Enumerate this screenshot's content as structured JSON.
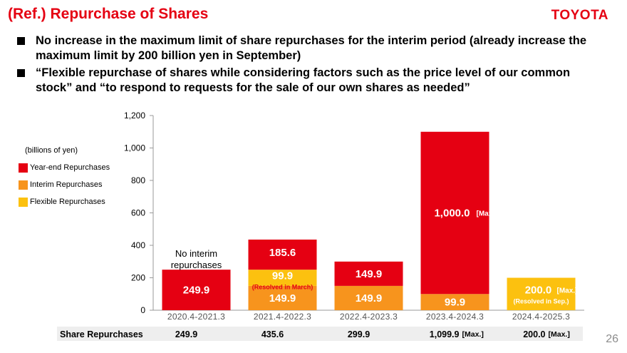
{
  "header": {
    "title": "(Ref.) Repurchase of Shares",
    "brand": "TOYOTA"
  },
  "bullets": [
    "No increase in the maximum limit of share repurchases for the interim period (already increase the maximum limit by 200 billion yen in September)",
    "“Flexible repurchase of shares while considering factors such as the price level of our common stock” and “to respond to requests for the sale of our own shares as needed”"
  ],
  "legend": {
    "unit": "(billions of yen)",
    "items": [
      {
        "label": "Year-end Repurchases",
        "color": "#e50012"
      },
      {
        "label": "Interim Repurchases",
        "color": "#f7941d"
      },
      {
        "label": "Flexible Repurchases",
        "color": "#fcc10f"
      }
    ]
  },
  "chart_data": {
    "type": "bar",
    "stacked": true,
    "ylim": [
      0,
      1200
    ],
    "yticks": [
      "0",
      "200",
      "400",
      "600",
      "800",
      "1,000",
      "1,200"
    ],
    "ytick_values": [
      0,
      200,
      400,
      600,
      800,
      1000,
      1200
    ],
    "categories": [
      "2020.4-2021.3",
      "2021.4-2022.3",
      "2022.4-2023.3",
      "2023.4-2024.3",
      "2024.4-2025.3"
    ],
    "series": [
      {
        "name": "Interim Repurchases",
        "color": "#f7941d",
        "values": [
          0,
          149.9,
          149.9,
          99.9,
          0
        ]
      },
      {
        "name": "Flexible Repurchases",
        "color": "#fcc10f",
        "values": [
          0,
          99.9,
          0,
          0,
          200.0
        ]
      },
      {
        "name": "Year-end Repurchases",
        "color": "#e50012",
        "values": [
          249.9,
          185.6,
          149.9,
          1000.0,
          0
        ]
      }
    ],
    "labels": {
      "Interim Repurchases": [
        "",
        "149.9",
        "149.9",
        "99.9",
        ""
      ],
      "Flexible Repurchases": [
        "",
        "99.9",
        "",
        "",
        "200.0"
      ],
      "Year-end Repurchases": [
        "249.9",
        "185.6",
        "149.9",
        "1,000.0",
        ""
      ]
    },
    "label_suffix": {
      "Year-end Repurchases": [
        "",
        "",
        "",
        "[Max.]",
        ""
      ],
      "Flexible Repurchases": [
        "",
        "",
        "",
        "",
        "[Max.]"
      ]
    },
    "label_notes": {
      "Flexible Repurchases": [
        "",
        "(Resolved in March)",
        "",
        "",
        "(Resolved in Sep.)"
      ]
    },
    "annotation": "No interim repurchases",
    "totals_label": "Share Repurchases",
    "totals": [
      "249.9",
      "435.6",
      "299.9",
      "1,099.9",
      "200.0"
    ],
    "totals_suffix": [
      "",
      "",
      "",
      "[Max.]",
      "[Max.]"
    ]
  },
  "footer": {
    "page": "26"
  }
}
